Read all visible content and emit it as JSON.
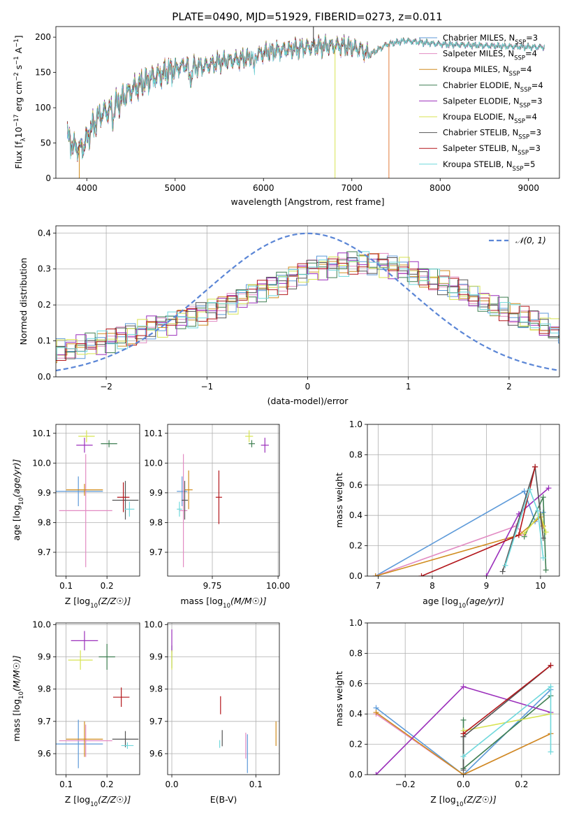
{
  "figure": {
    "title": "PLATE=0490, MJD=51929, FIBERID=0273, z=0.011"
  },
  "colors": {
    "Chabrier MILES": "#5d9ad9",
    "Salpeter MILES": "#e28bc3",
    "Kroupa MILES": "#d08c1e",
    "Chabrier ELODIE": "#3f7f52",
    "Salpeter ELODIE": "#9b2fbb",
    "Kroupa ELODIE": "#d7e352",
    "Chabrier STELIB": "#555555",
    "Salpeter STELIB": "#b3161b",
    "Kroupa STELIB": "#6fd8dc"
  },
  "chart_data": [
    {
      "id": "spectrum",
      "type": "line",
      "xlabel": "wavelength [Angstrom, rest frame]",
      "ylabel": "Flux [f_λ10^-17 erg cm^-2 s^-1 A^-1]",
      "xlim": [
        3650,
        9350
      ],
      "ylim": [
        0,
        215
      ],
      "xticks": [
        4000,
        5000,
        6000,
        7000,
        8000,
        9000
      ],
      "yticks": [
        0,
        50,
        100,
        150,
        200
      ],
      "grid": false,
      "legend_position": "top-right",
      "legend": [
        {
          "label": "Chabrier MILES, N_SSP=3",
          "color": "#5d9ad9"
        },
        {
          "label": "Salpeter MILES, N_SSP=4",
          "color": "#e28bc3"
        },
        {
          "label": "Kroupa MILES, N_SSP=4",
          "color": "#d08c1e"
        },
        {
          "label": "Chabrier ELODIE, N_SSP=4",
          "color": "#3f7f52"
        },
        {
          "label": "Salpeter ELODIE, N_SSP=3",
          "color": "#9b2fbb"
        },
        {
          "label": "Kroupa ELODIE, N_SSP=4",
          "color": "#d7e352"
        },
        {
          "label": "Chabrier STELIB, N_SSP=3",
          "color": "#555555"
        },
        {
          "label": "Salpeter STELIB, N_SSP=3",
          "color": "#b3161b"
        },
        {
          "label": "Kroupa STELIB, N_SSP=5",
          "color": "#6fd8dc"
        }
      ],
      "continuum": [
        [
          3780,
          60
        ],
        [
          3850,
          45
        ],
        [
          3950,
          42
        ],
        [
          4050,
          70
        ],
        [
          4150,
          90
        ],
        [
          4300,
          100
        ],
        [
          4500,
          125
        ],
        [
          4700,
          140
        ],
        [
          4900,
          150
        ],
        [
          5100,
          160
        ],
        [
          5300,
          158
        ],
        [
          5500,
          165
        ],
        [
          5800,
          170
        ],
        [
          6000,
          178
        ],
        [
          6300,
          183
        ],
        [
          6600,
          187
        ],
        [
          6900,
          188
        ],
        [
          7100,
          183
        ],
        [
          7200,
          175
        ],
        [
          7400,
          190
        ],
        [
          7600,
          195
        ],
        [
          8000,
          190
        ],
        [
          8500,
          188
        ],
        [
          9000,
          186
        ],
        [
          9180,
          186
        ]
      ],
      "dropouts": [
        {
          "x": 3915,
          "color": "#d08c1e"
        },
        {
          "x": 6810,
          "color": "#d7e352"
        },
        {
          "x": 7420,
          "color": "#e07b3b"
        }
      ],
      "spike": {
        "x": 6565,
        "value": 215
      }
    },
    {
      "id": "residual-histogram",
      "type": "histogram",
      "xlabel": "(data-model)/error",
      "ylabel": "Normed distribution",
      "xlim": [
        -2.5,
        2.5
      ],
      "ylim": [
        0,
        0.42
      ],
      "xticks": [
        -2,
        -1,
        0,
        1,
        2
      ],
      "yticks": [
        0.0,
        0.1,
        0.2,
        0.3,
        0.4
      ],
      "grid": true,
      "legend_position": "top-right",
      "gaussian": {
        "label": "𝒩(0, 1)",
        "mean": 0,
        "sigma": 1,
        "color": "#5b86d6"
      },
      "bin_edges_step": 0.1,
      "envelope": [
        0.07,
        0.075,
        0.08,
        0.085,
        0.09,
        0.095,
        0.1,
        0.11,
        0.12,
        0.13,
        0.14,
        0.145,
        0.15,
        0.16,
        0.17,
        0.18,
        0.19,
        0.2,
        0.21,
        0.22,
        0.235,
        0.245,
        0.255,
        0.265,
        0.28,
        0.29,
        0.3,
        0.305,
        0.31,
        0.315,
        0.32,
        0.32,
        0.315,
        0.31,
        0.305,
        0.3,
        0.29,
        0.28,
        0.27,
        0.26,
        0.245,
        0.235,
        0.22,
        0.21,
        0.195,
        0.185,
        0.17,
        0.16,
        0.15,
        0.14,
        0.13,
        0.12,
        0.11,
        0.1,
        0.095,
        0.09,
        0.08,
        0.075,
        0.07,
        0.065
      ]
    },
    {
      "id": "z-vs-age",
      "type": "scatter",
      "xlabel": "Z [log10(Z/Z☉)]",
      "ylabel": "age  [log10(age/yr)]",
      "xlim": [
        0.075,
        0.28
      ],
      "ylim": [
        9.62,
        10.13
      ],
      "xticks": [
        0.1,
        0.2
      ],
      "yticks": [
        9.7,
        9.8,
        9.9,
        10.0,
        10.1
      ],
      "grid": true,
      "points": [
        {
          "series": "Chabrier MILES",
          "x": 0.13,
          "y": 9.905,
          "xerr": 0.06,
          "yerr": 0.05
        },
        {
          "series": "Salpeter MILES",
          "x": 0.148,
          "y": 9.84,
          "xerr": 0.065,
          "yerr": 0.19
        },
        {
          "series": "Kroupa MILES",
          "x": 0.145,
          "y": 9.91,
          "xerr": 0.045,
          "yerr": 0.02
        },
        {
          "series": "Chabrier ELODIE",
          "x": 0.205,
          "y": 10.065,
          "xerr": 0.02,
          "yerr": 0.012
        },
        {
          "series": "Salpeter ELODIE",
          "x": 0.145,
          "y": 10.06,
          "xerr": 0.02,
          "yerr": 0.025
        },
        {
          "series": "Kroupa ELODIE",
          "x": 0.15,
          "y": 10.09,
          "xerr": 0.02,
          "yerr": 0.02
        },
        {
          "series": "Chabrier STELIB",
          "x": 0.245,
          "y": 9.875,
          "xerr": 0.032,
          "yerr": 0.065
        },
        {
          "series": "Salpeter STELIB",
          "x": 0.24,
          "y": 9.885,
          "xerr": 0.015,
          "yerr": 0.05
        },
        {
          "series": "Kroupa STELIB",
          "x": 0.255,
          "y": 9.845,
          "xerr": 0.012,
          "yerr": 0.025
        }
      ]
    },
    {
      "id": "mass-vs-age",
      "type": "scatter",
      "xlabel": "mass [log10(M/M☉)]",
      "ylabel": "",
      "xlim": [
        9.58,
        10.005
      ],
      "ylim": [
        9.62,
        10.13
      ],
      "xticks": [
        9.75,
        10.0
      ],
      "tick_labels": [
        "9.75",
        "10.00"
      ],
      "yticks": [
        9.7,
        9.8,
        9.9,
        10.0,
        10.1
      ],
      "grid": true,
      "points": [
        {
          "series": "Chabrier MILES",
          "x": 9.635,
          "y": 9.905,
          "xerr": 0.02,
          "yerr": 0.05
        },
        {
          "series": "Salpeter MILES",
          "x": 9.64,
          "y": 9.84,
          "xerr": 0.015,
          "yerr": 0.19
        },
        {
          "series": "Kroupa MILES",
          "x": 9.66,
          "y": 9.91,
          "xerr": 0.015,
          "yerr": 0.065
        },
        {
          "series": "Chabrier ELODIE",
          "x": 9.9,
          "y": 10.065,
          "xerr": 0.012,
          "yerr": 0.012
        },
        {
          "series": "Salpeter ELODIE",
          "x": 9.95,
          "y": 10.06,
          "xerr": 0.015,
          "yerr": 0.025
        },
        {
          "series": "Kroupa ELODIE",
          "x": 9.89,
          "y": 10.09,
          "xerr": 0.015,
          "yerr": 0.02
        },
        {
          "series": "Chabrier STELIB",
          "x": 9.645,
          "y": 9.875,
          "xerr": 0.012,
          "yerr": 0.065
        },
        {
          "series": "Salpeter STELIB",
          "x": 9.775,
          "y": 9.885,
          "xerr": 0.012,
          "yerr": 0.09
        },
        {
          "series": "Kroupa STELIB",
          "x": 9.625,
          "y": 9.845,
          "xerr": 0.01,
          "yerr": 0.025
        }
      ]
    },
    {
      "id": "age-vs-mass-weight",
      "type": "line",
      "xlabel": "age  [log10(age/yr)]",
      "ylabel": "mass weight",
      "xlim": [
        6.8,
        10.35
      ],
      "ylim": [
        0,
        1.0
      ],
      "xticks": [
        7,
        8,
        9,
        10
      ],
      "yticks": [
        0.0,
        0.2,
        0.4,
        0.6,
        0.8,
        1.0
      ],
      "grid": true,
      "series": [
        {
          "name": "Chabrier MILES",
          "points": [
            [
              6.95,
              0.0
            ],
            [
              9.7,
              0.56
            ],
            [
              9.9,
              0.36
            ],
            [
              10.05,
              0.42
            ]
          ]
        },
        {
          "name": "Salpeter MILES",
          "points": [
            [
              6.95,
              0.0
            ],
            [
              9.55,
              0.33
            ],
            [
              9.7,
              0.27
            ]
          ]
        },
        {
          "name": "Kroupa MILES",
          "points": [
            [
              6.95,
              0.0
            ],
            [
              9.6,
              0.27
            ],
            [
              10.0,
              0.39
            ],
            [
              10.05,
              0.33
            ]
          ]
        },
        {
          "name": "Chabrier ELODIE",
          "points": [
            [
              9.7,
              0.26
            ],
            [
              10.05,
              0.52
            ],
            [
              10.1,
              0.04
            ]
          ]
        },
        {
          "name": "Salpeter ELODIE",
          "points": [
            [
              9.0,
              0.0
            ],
            [
              9.6,
              0.41
            ],
            [
              10.15,
              0.58
            ]
          ]
        },
        {
          "name": "Kroupa ELODIE",
          "points": [
            [
              9.7,
              0.28
            ],
            [
              10.0,
              0.41
            ],
            [
              10.1,
              0.29
            ]
          ]
        },
        {
          "name": "Chabrier STELIB",
          "points": [
            [
              9.3,
              0.03
            ],
            [
              9.9,
              0.72
            ],
            [
              10.05,
              0.25
            ]
          ]
        },
        {
          "name": "Salpeter STELIB",
          "points": [
            [
              7.8,
              0.0
            ],
            [
              9.6,
              0.27
            ],
            [
              9.9,
              0.72
            ]
          ]
        },
        {
          "name": "Kroupa STELIB",
          "points": [
            [
              9.35,
              0.07
            ],
            [
              9.8,
              0.57
            ],
            [
              9.95,
              0.43
            ],
            [
              10.05,
              0.12
            ]
          ]
        }
      ]
    },
    {
      "id": "z-vs-mass",
      "type": "scatter",
      "xlabel": "Z [log10(Z/Z☉)]",
      "ylabel": "mass [log10(M/M☉)]",
      "xlim": [
        0.075,
        0.28
      ],
      "ylim": [
        9.535,
        10.005
      ],
      "xticks": [
        0.1,
        0.2
      ],
      "yticks": [
        9.6,
        9.7,
        9.8,
        9.9,
        10.0
      ],
      "grid": true,
      "points": [
        {
          "series": "Chabrier MILES",
          "x": 0.13,
          "y": 9.63,
          "xerr": 0.06,
          "yerr": 0.075
        },
        {
          "series": "Salpeter MILES",
          "x": 0.148,
          "y": 9.64,
          "xerr": 0.065,
          "yerr": 0.05
        },
        {
          "series": "Kroupa MILES",
          "x": 0.145,
          "y": 9.645,
          "xerr": 0.045,
          "yerr": 0.055
        },
        {
          "series": "Chabrier ELODIE",
          "x": 0.2,
          "y": 9.9,
          "xerr": 0.02,
          "yerr": 0.04
        },
        {
          "series": "Salpeter ELODIE",
          "x": 0.145,
          "y": 9.95,
          "xerr": 0.033,
          "yerr": 0.03
        },
        {
          "series": "Kroupa ELODIE",
          "x": 0.135,
          "y": 9.89,
          "xerr": 0.03,
          "yerr": 0.03
        },
        {
          "series": "Chabrier STELIB",
          "x": 0.245,
          "y": 9.645,
          "xerr": 0.032,
          "yerr": 0.025
        },
        {
          "series": "Salpeter STELIB",
          "x": 0.235,
          "y": 9.775,
          "xerr": 0.02,
          "yerr": 0.03
        },
        {
          "series": "Kroupa STELIB",
          "x": 0.25,
          "y": 9.625,
          "xerr": 0.015,
          "yerr": 0.01
        }
      ]
    },
    {
      "id": "ebv-vs-mass",
      "type": "scatter",
      "xlabel": "E(B-V)",
      "ylabel": "",
      "xlim": [
        -0.005,
        0.128
      ],
      "ylim": [
        9.535,
        10.005
      ],
      "xticks": [
        0.0,
        0.1
      ],
      "tick_labels": [
        "0.0",
        "0.1"
      ],
      "yticks": [
        9.6,
        9.7,
        9.8,
        9.9,
        10.0
      ],
      "grid": true,
      "points": [
        {
          "series": "Chabrier MILES",
          "x": 0.09,
          "y": 9.6,
          "yerr": 0.06
        },
        {
          "series": "Salpeter MILES",
          "x": 0.088,
          "y": 9.625,
          "yerr": 0.04
        },
        {
          "series": "Kroupa MILES",
          "x": 0.124,
          "y": 9.662,
          "yerr": 0.038
        },
        {
          "series": "Chabrier ELODIE",
          "x": 0.0,
          "y": 9.9,
          "yerr": 0.035
        },
        {
          "series": "Salpeter ELODIE",
          "x": 0.0,
          "y": 9.95,
          "yerr": 0.035
        },
        {
          "series": "Kroupa ELODIE",
          "x": 0.0,
          "y": 9.89,
          "yerr": 0.03
        },
        {
          "series": "Chabrier STELIB",
          "x": 0.06,
          "y": 9.648,
          "yerr": 0.025
        },
        {
          "series": "Salpeter STELIB",
          "x": 0.058,
          "y": 9.75,
          "yerr": 0.028
        },
        {
          "series": "Kroupa STELIB",
          "x": 0.057,
          "y": 9.63,
          "yerr": 0.012
        }
      ]
    },
    {
      "id": "z-vs-mass-weight",
      "type": "line",
      "xlabel": "Z [log10(Z/Z☉)]",
      "ylabel": "mass weight",
      "xlim": [
        -0.33,
        0.33
      ],
      "ylim": [
        0,
        1.0
      ],
      "xticks": [
        -0.2,
        0.0,
        0.2
      ],
      "tick_labels": [
        "−0.2",
        "0.0",
        "0.2"
      ],
      "yticks": [
        0.0,
        0.2,
        0.4,
        0.6,
        0.8,
        1.0
      ],
      "grid": true,
      "series": [
        {
          "name": "Chabrier MILES",
          "points": [
            [
              -0.3,
              0.44
            ],
            [
              0.0,
              0.0
            ],
            [
              0.3,
              0.56
            ]
          ]
        },
        {
          "name": "Salpeter MILES",
          "points": [
            [
              -0.3,
              0.4
            ],
            [
              0.0,
              0.0
            ],
            [
              0.3,
              0.27
            ]
          ]
        },
        {
          "name": "Kroupa MILES",
          "points": [
            [
              -0.3,
              0.41
            ],
            [
              0.0,
              0.0
            ],
            [
              0.3,
              0.27
            ]
          ]
        },
        {
          "name": "Chabrier ELODIE",
          "points": [
            [
              0.0,
              0.36
            ],
            [
              0.0,
              0.04
            ],
            [
              0.3,
              0.52
            ]
          ]
        },
        {
          "name": "Salpeter ELODIE",
          "points": [
            [
              -0.3,
              0.0
            ],
            [
              0.0,
              0.58
            ],
            [
              0.3,
              0.41
            ]
          ]
        },
        {
          "name": "Kroupa ELODIE",
          "points": [
            [
              0.0,
              0.29
            ],
            [
              0.3,
              0.4
            ]
          ]
        },
        {
          "name": "Chabrier STELIB",
          "points": [
            [
              0.0,
              0.03
            ],
            [
              0.0,
              0.25
            ],
            [
              0.3,
              0.72
            ]
          ]
        },
        {
          "name": "Salpeter STELIB",
          "points": [
            [
              0.0,
              0.27
            ],
            [
              0.3,
              0.72
            ]
          ]
        },
        {
          "name": "Kroupa STELIB",
          "points": [
            [
              0.0,
              0.12
            ],
            [
              0.3,
              0.58
            ],
            [
              0.3,
              0.15
            ]
          ]
        }
      ]
    }
  ]
}
